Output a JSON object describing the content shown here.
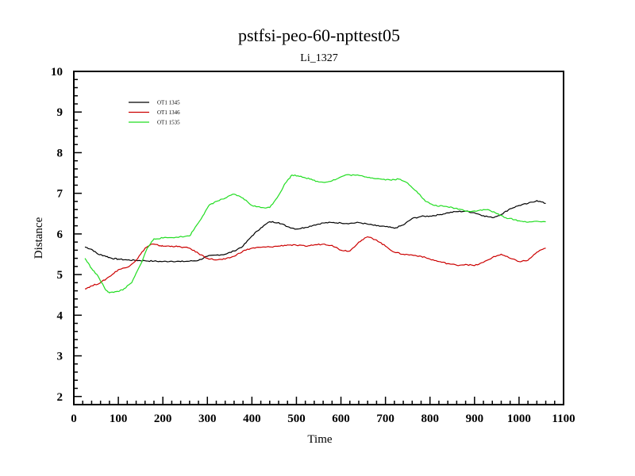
{
  "chart_data": {
    "type": "line",
    "title": "pstfsi-peo-60-npttest05",
    "subtitle": "Li_1327",
    "xlabel": "Time",
    "ylabel": "Distance",
    "xlim": [
      0,
      1100
    ],
    "ylim": [
      1.8,
      10
    ],
    "xticks": [
      0,
      100,
      200,
      300,
      400,
      500,
      600,
      700,
      800,
      900,
      1000,
      1100
    ],
    "yticks": [
      2,
      3,
      4,
      5,
      6,
      7,
      8,
      9,
      10
    ],
    "grid": false,
    "legend": "top-left",
    "series": [
      {
        "name": "OT1 1345",
        "color": "#000000",
        "x": [
          25,
          40,
          55,
          70,
          85,
          100,
          120,
          140,
          160,
          180,
          200,
          220,
          240,
          260,
          280,
          300,
          320,
          340,
          360,
          380,
          400,
          420,
          440,
          460,
          480,
          500,
          520,
          540,
          560,
          580,
          600,
          620,
          640,
          660,
          680,
          700,
          720,
          740,
          760,
          780,
          800,
          820,
          840,
          860,
          880,
          900,
          920,
          940,
          960,
          980,
          1000,
          1020,
          1040,
          1060
        ],
        "y": [
          5.68,
          5.62,
          5.5,
          5.46,
          5.4,
          5.38,
          5.36,
          5.35,
          5.34,
          5.33,
          5.32,
          5.33,
          5.32,
          5.33,
          5.35,
          5.45,
          5.48,
          5.5,
          5.58,
          5.7,
          5.95,
          6.15,
          6.3,
          6.28,
          6.18,
          6.12,
          6.16,
          6.22,
          6.27,
          6.28,
          6.27,
          6.26,
          6.28,
          6.24,
          6.2,
          6.18,
          6.14,
          6.22,
          6.38,
          6.43,
          6.44,
          6.47,
          6.52,
          6.55,
          6.56,
          6.52,
          6.45,
          6.4,
          6.48,
          6.62,
          6.7,
          6.75,
          6.82,
          6.75
        ]
      },
      {
        "name": "OT1 1346",
        "color": "#cc0000",
        "x": [
          25,
          40,
          60,
          80,
          100,
          120,
          140,
          160,
          175,
          190,
          200,
          220,
          240,
          260,
          280,
          300,
          320,
          340,
          360,
          380,
          400,
          420,
          440,
          460,
          480,
          500,
          520,
          540,
          560,
          580,
          600,
          620,
          640,
          660,
          680,
          700,
          720,
          740,
          760,
          780,
          800,
          820,
          840,
          860,
          880,
          900,
          920,
          940,
          960,
          980,
          1000,
          1020,
          1040,
          1060
        ],
        "y": [
          4.65,
          4.72,
          4.8,
          4.95,
          5.12,
          5.18,
          5.35,
          5.65,
          5.75,
          5.72,
          5.7,
          5.7,
          5.68,
          5.65,
          5.52,
          5.4,
          5.36,
          5.38,
          5.45,
          5.58,
          5.65,
          5.67,
          5.68,
          5.7,
          5.73,
          5.72,
          5.7,
          5.73,
          5.75,
          5.72,
          5.6,
          5.58,
          5.8,
          5.93,
          5.85,
          5.7,
          5.55,
          5.5,
          5.48,
          5.45,
          5.38,
          5.32,
          5.27,
          5.23,
          5.25,
          5.22,
          5.3,
          5.42,
          5.5,
          5.4,
          5.32,
          5.35,
          5.55,
          5.65
        ]
      },
      {
        "name": "OT1 1535",
        "color": "#22dd22",
        "x": [
          25,
          40,
          55,
          70,
          80,
          95,
          110,
          130,
          150,
          165,
          180,
          200,
          230,
          260,
          275,
          290,
          305,
          320,
          340,
          360,
          380,
          400,
          420,
          440,
          460,
          475,
          490,
          510,
          530,
          550,
          570,
          590,
          610,
          630,
          650,
          670,
          690,
          710,
          730,
          750,
          770,
          790,
          810,
          830,
          850,
          870,
          890,
          910,
          930,
          950,
          970,
          990,
          1010,
          1030,
          1060
        ],
        "y": [
          5.4,
          5.15,
          4.95,
          4.65,
          4.55,
          4.58,
          4.62,
          4.8,
          5.25,
          5.65,
          5.88,
          5.9,
          5.92,
          5.95,
          6.2,
          6.45,
          6.72,
          6.8,
          6.88,
          6.98,
          6.88,
          6.7,
          6.65,
          6.65,
          6.95,
          7.25,
          7.45,
          7.42,
          7.35,
          7.28,
          7.28,
          7.35,
          7.45,
          7.45,
          7.42,
          7.38,
          7.35,
          7.33,
          7.35,
          7.25,
          7.05,
          6.8,
          6.7,
          6.68,
          6.65,
          6.6,
          6.55,
          6.58,
          6.6,
          6.5,
          6.4,
          6.35,
          6.3,
          6.3,
          6.3
        ]
      }
    ]
  }
}
